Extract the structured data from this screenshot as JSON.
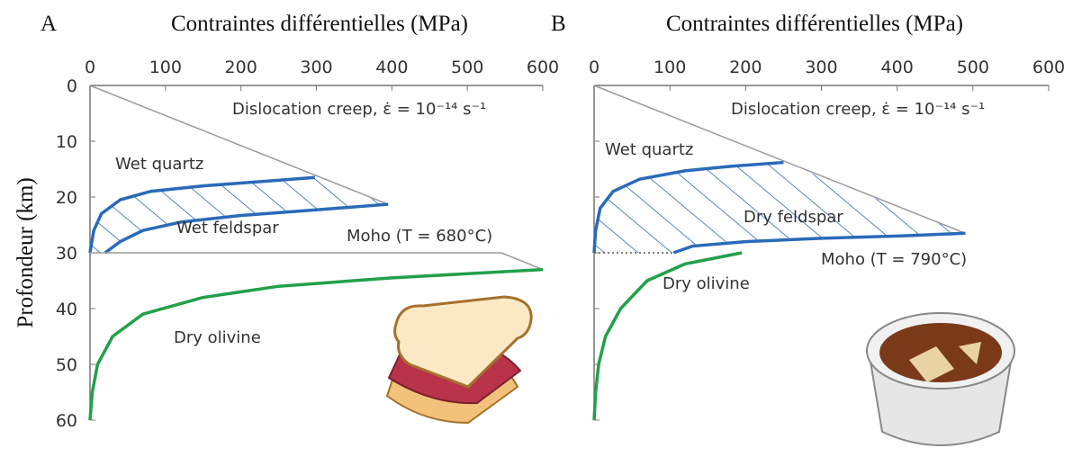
{
  "chart_data": [
    {
      "type": "line",
      "panel": "A",
      "xlabel": "Contraintes différentielles (MPa)",
      "ylabel": "Profondeur (km)",
      "annotation": "Dislocation creep, ε̇ = 10⁻¹⁴ s⁻¹",
      "xlim": [
        0,
        600
      ],
      "xticks": [
        0,
        100,
        200,
        300,
        400,
        500,
        600
      ],
      "ylim": [
        0,
        60
      ],
      "yticks": [
        0,
        10,
        20,
        30,
        40,
        50,
        60
      ],
      "y_inverted": true,
      "show_ytick_labels": true,
      "series": [
        {
          "color": "#9a9a9a",
          "x": [
            0,
            395
          ],
          "values": [
            0,
            21.3
          ]
        },
        {
          "name": "Wet quartz",
          "color": "#2a6ab8",
          "x": [
            0,
            5,
            15,
            40,
            80,
            150,
            220,
            298
          ],
          "values": [
            30,
            26,
            23,
            20.5,
            19,
            18,
            17.3,
            16.5
          ]
        },
        {
          "name": "Wet feldspar",
          "color": "#2a6ab8",
          "x": [
            20,
            40,
            70,
            120,
            200,
            300,
            395
          ],
          "values": [
            30,
            28,
            26,
            24.5,
            23.3,
            22.3,
            21.3
          ]
        },
        {
          "name": "Moho (T = 680°C)",
          "color": "#9a9a9a",
          "x": [
            0,
            545,
            600
          ],
          "values": [
            30,
            30,
            33
          ]
        },
        {
          "name": "Dry olivine",
          "color": "#22a04a",
          "x": [
            0,
            3,
            10,
            30,
            70,
            150,
            250,
            400,
            600
          ],
          "values": [
            60,
            55,
            50,
            45,
            41,
            38,
            36,
            34.5,
            33
          ]
        }
      ]
    },
    {
      "type": "line",
      "panel": "B",
      "xlabel": "Contraintes différentielles (MPa)",
      "annotation": "Dislocation creep, ε̇ = 10⁻¹⁴ s⁻¹",
      "xlim": [
        0,
        600
      ],
      "xticks": [
        0,
        100,
        200,
        300,
        400,
        500,
        600
      ],
      "ylim": [
        0,
        60
      ],
      "yticks": [
        0,
        10,
        20,
        30,
        40,
        50,
        60
      ],
      "y_inverted": true,
      "show_ytick_labels": false,
      "series": [
        {
          "color": "#9a9a9a",
          "x": [
            0,
            490
          ],
          "values": [
            0,
            26.5
          ]
        },
        {
          "name": "Wet quartz",
          "color": "#2a6ab8",
          "x": [
            0,
            2,
            8,
            25,
            60,
            120,
            180,
            250
          ],
          "values": [
            30,
            26,
            22,
            19,
            16.8,
            15.3,
            14.5,
            13.8
          ]
        },
        {
          "name": "Dry feldspar",
          "color": "#2a6ab8",
          "x": [
            105,
            130,
            200,
            300,
            400,
            490
          ],
          "values": [
            30,
            28.8,
            28,
            27.4,
            27,
            26.5
          ]
        },
        {
          "name": "Moho (T = 790°C)",
          "color": "#555555",
          "style": "dotted",
          "x": [
            0,
            105
          ],
          "values": [
            30,
            30
          ]
        },
        {
          "name": "Dry olivine",
          "color": "#22a04a",
          "x": [
            0,
            2,
            6,
            15,
            35,
            70,
            120,
            195
          ],
          "values": [
            60,
            55,
            50,
            45,
            40,
            35,
            32,
            30
          ]
        }
      ]
    }
  ]
}
